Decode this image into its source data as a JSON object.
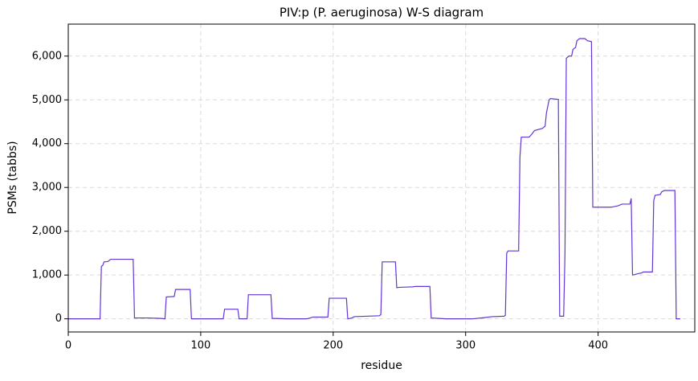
{
  "chart_data": {
    "type": "line",
    "title": "PIV:p (P. aeruginosa) W-S diagram",
    "xlabel": "residue",
    "ylabel": "PSMs (tabbs)",
    "xlim": [
      0,
      473
    ],
    "ylim": [
      -300,
      6730
    ],
    "xticks": [
      0,
      100,
      200,
      300,
      400
    ],
    "yticks": [
      0,
      {
        "value": 1000,
        "label": "1,000"
      },
      {
        "value": 2000,
        "label": "2,000"
      },
      {
        "value": 3000,
        "label": "3,000"
      },
      {
        "value": 4000,
        "label": "4,000"
      },
      {
        "value": 5000,
        "label": "5,000"
      },
      {
        "value": 6000,
        "label": "6,000"
      }
    ],
    "grid": true,
    "color": "#6236d5",
    "x": [
      0,
      24,
      25,
      26,
      27,
      30,
      32,
      49,
      50,
      60,
      70,
      73,
      74,
      80,
      81,
      92,
      93,
      117,
      118,
      128,
      129,
      135,
      136,
      153,
      154,
      165,
      180,
      185,
      196,
      197,
      210,
      211,
      214,
      216,
      235,
      236,
      237,
      247,
      248,
      250,
      260,
      262,
      273,
      274,
      285,
      305,
      315,
      320,
      329,
      330,
      331,
      332,
      340,
      341,
      342,
      348,
      350,
      352,
      358,
      360,
      361,
      363,
      364,
      370,
      371,
      374,
      375,
      376,
      378,
      380,
      381,
      383,
      384,
      386,
      390,
      392,
      395,
      396,
      410,
      415,
      418,
      424,
      425,
      426,
      430,
      433,
      434,
      441,
      442,
      443,
      447,
      448,
      450,
      458,
      459,
      462
    ],
    "values": [
      0,
      0,
      1200,
      1220,
      1300,
      1310,
      1360,
      1360,
      20,
      20,
      10,
      0,
      500,
      510,
      670,
      670,
      0,
      0,
      220,
      220,
      0,
      0,
      550,
      550,
      10,
      0,
      0,
      40,
      40,
      470,
      470,
      0,
      20,
      50,
      70,
      100,
      1300,
      1300,
      710,
      720,
      730,
      740,
      740,
      20,
      0,
      0,
      30,
      50,
      60,
      80,
      1500,
      1550,
      1550,
      3700,
      4150,
      4150,
      4220,
      4300,
      4350,
      4400,
      4700,
      5000,
      5030,
      5010,
      60,
      60,
      1500,
      5950,
      6000,
      6000,
      6150,
      6200,
      6350,
      6400,
      6400,
      6350,
      6330,
      2550,
      2550,
      2580,
      2620,
      2620,
      2750,
      1000,
      1030,
      1050,
      1070,
      1070,
      2700,
      2820,
      2840,
      2900,
      2930,
      2930,
      0,
      0
    ]
  }
}
